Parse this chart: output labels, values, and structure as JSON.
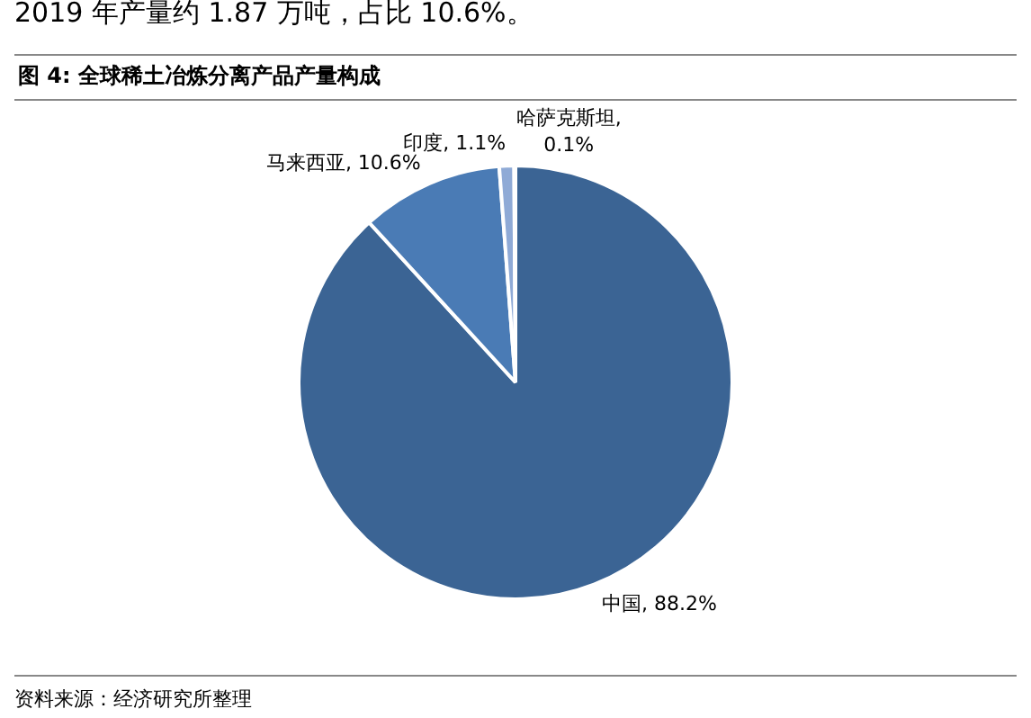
{
  "chart_data": {
    "type": "pie",
    "title": "图 4:  全球稀土冶炼分离产品产量构成",
    "categories": [
      "中国",
      "马来西亚",
      "印度",
      "哈萨克斯坦"
    ],
    "values": [
      88.2,
      10.6,
      1.1,
      0.1
    ],
    "colors": [
      "#3b6494",
      "#4a7bb5",
      "#8faad6",
      "#c9d5ea"
    ],
    "value_labels": [
      ", 88.2%",
      ", 10.6%",
      ", 1.1%",
      ", 0.1%"
    ],
    "legend": false,
    "annotations": [
      "2019 年产量约 1.87 万吨，占比 10.6%。",
      "资料来源：经济研究所整理"
    ]
  }
}
